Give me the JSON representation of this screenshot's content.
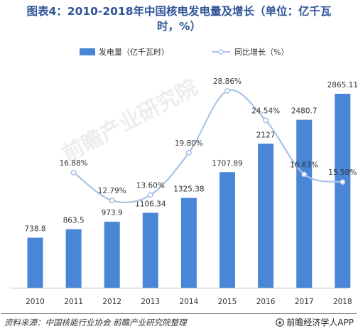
{
  "title_line1": "图表4：2010-2018年中国核电发电量及增长（单位：亿千瓦",
  "title_line2": "时，%）",
  "source": "资料来源：中国核能行业协会 前瞻产业研究院整理",
  "brand": "前瞻经济学人APP",
  "watermark": "前瞻产业研究院",
  "colors": {
    "bar": "#4a86d8",
    "line": "#a9c4e4",
    "title": "#2f5597"
  },
  "chart_data": {
    "type": "bar",
    "categories": [
      "2010",
      "2011",
      "2012",
      "2013",
      "2014",
      "2015",
      "2016",
      "2017",
      "2018"
    ],
    "series": [
      {
        "name": "发电量（亿千瓦时）",
        "type": "bar",
        "values": [
          738.8,
          863.5,
          973.9,
          1106.34,
          1325.38,
          1707.89,
          2127,
          2480.7,
          2865.11
        ],
        "labels": [
          "738.8",
          "863.5",
          "973.9",
          "1106.34",
          "1325.38",
          "1707.89",
          "2127",
          "2480.7",
          "2865.11"
        ]
      },
      {
        "name": "同比增长（%）",
        "type": "line",
        "values": [
          null,
          16.88,
          12.79,
          13.6,
          19.8,
          28.86,
          24.54,
          16.63,
          15.5
        ],
        "labels": [
          "",
          "16.88%",
          "12.79%",
          "13.60%",
          "19.80%",
          "28.86%",
          "24.54%",
          "16.63%",
          "15.50%"
        ]
      }
    ],
    "legend_position": "top-center",
    "grid": false
  }
}
